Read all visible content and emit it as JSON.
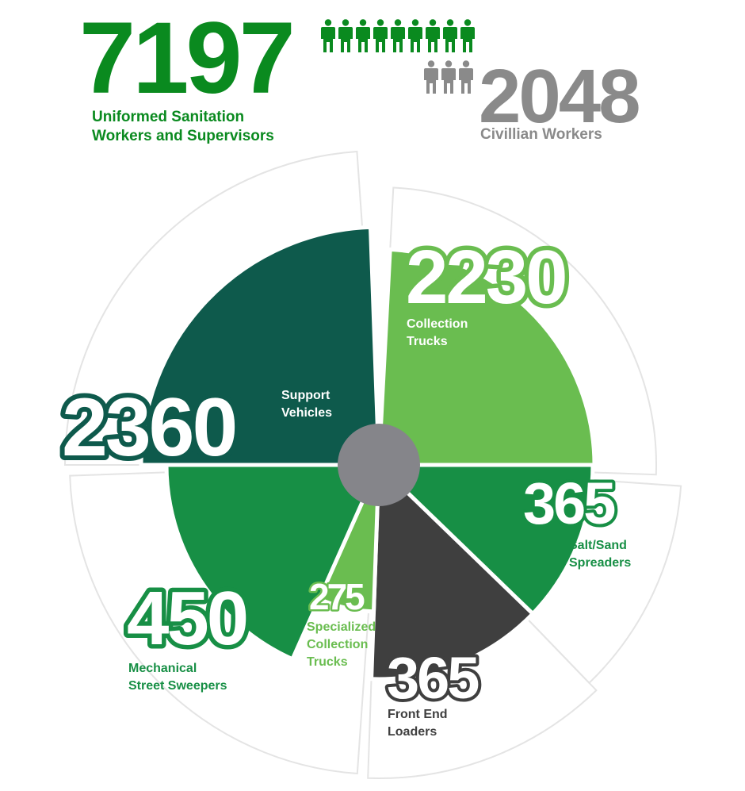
{
  "header": {
    "uniformed": {
      "value": "7197",
      "label_line1": "Uniformed Sanitation",
      "label_line2": "Workers and Supervisors",
      "color": "#0a8a1f",
      "icon_count": 9,
      "icon": "person-icon"
    },
    "civilian": {
      "value": "2048",
      "label": "Civillian Workers",
      "color": "#8a8a8a",
      "icon_count": 3,
      "icon": "person-icon"
    }
  },
  "chart_data": {
    "type": "pie",
    "center_color": "#85858a",
    "slices": [
      {
        "key": "collection",
        "value": 2230,
        "label_text": "2230",
        "label_line1": "Collection",
        "label_line2": "Trucks",
        "color": "#6abd50"
      },
      {
        "key": "salt",
        "value": 365,
        "label_text": "365",
        "label_line1": "Salt/Sand",
        "label_line2": "Spreaders",
        "color": "#178f45"
      },
      {
        "key": "frontend",
        "value": 365,
        "label_text": "365",
        "label_line1": "Front End",
        "label_line2": "Loaders",
        "color": "#3f3f3f"
      },
      {
        "key": "specialized",
        "value": 275,
        "label_text": "275",
        "label_line1": "Specialized",
        "label_line2": "Collection",
        "label_line3": "Trucks",
        "color": "#6abd50"
      },
      {
        "key": "sweepers",
        "value": 450,
        "label_text": "450",
        "label_line1": "Mechanical",
        "label_line2": "Street Sweepers",
        "color": "#178f45"
      },
      {
        "key": "support",
        "value": 2360,
        "label_text": "2360",
        "label_line1": "Support",
        "label_line2": "Vehicles",
        "color": "#0e5a4c"
      }
    ]
  }
}
